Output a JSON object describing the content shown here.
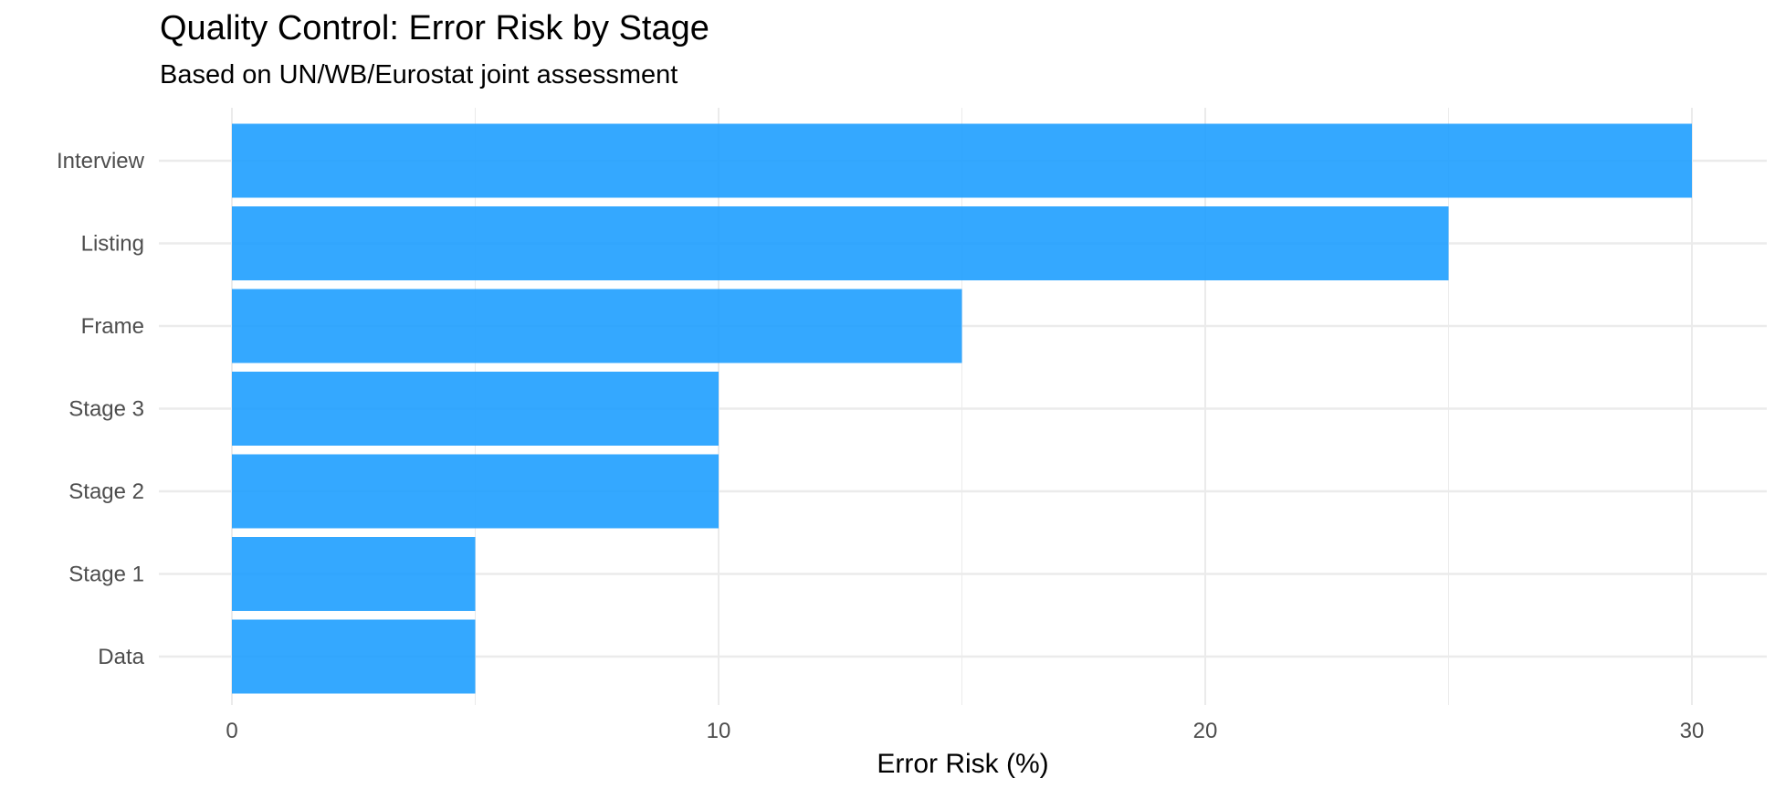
{
  "chart_data": {
    "type": "bar",
    "orientation": "horizontal",
    "title": "Quality Control: Error Risk by Stage",
    "subtitle": "Based on UN/WB/Eurostat joint assessment",
    "xlabel": "Error Risk (%)",
    "ylabel": "",
    "categories": [
      "Interview",
      "Listing",
      "Frame",
      "Stage 3",
      "Stage 2",
      "Stage 1",
      "Data"
    ],
    "values": [
      30,
      25,
      15,
      10,
      10,
      5,
      5
    ],
    "xlim": [
      0,
      31.5
    ],
    "x_ticks": [
      0,
      10,
      20,
      30
    ],
    "x_tick_labels": [
      "0",
      "10",
      "20",
      "30"
    ],
    "x_minor_gridlines": [
      5,
      15,
      25
    ],
    "grid": true,
    "legend": "none",
    "bar_color": "#1E9FFF"
  }
}
